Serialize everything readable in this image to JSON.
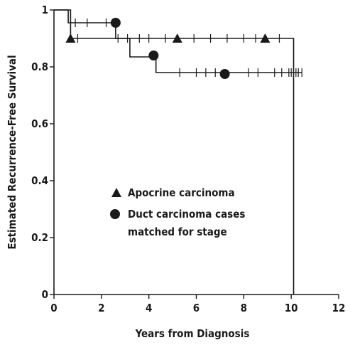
{
  "chart_data": {
    "type": "line",
    "title": "",
    "xlabel": "Years from Diagnosis",
    "ylabel": "Estimated Recurrence-Free Survival",
    "xlim": [
      0,
      12
    ],
    "ylim": [
      0,
      1
    ],
    "xticks": [
      "0",
      "2",
      "4",
      "6",
      "8",
      "10",
      "12"
    ],
    "yticks": [
      "0",
      "0.2",
      "0.4",
      "0.6",
      "0.8",
      "1"
    ],
    "grid": false,
    "legend_position": "center-left",
    "colors": {
      "ink": "#1a1a1a"
    },
    "series": [
      {
        "name": "Apocrine carcinoma",
        "marker": "triangle",
        "step_x": [
          0,
          0.7,
          10.1,
          10.1
        ],
        "step_y": [
          1.0,
          0.9,
          0.9,
          0.0
        ],
        "censor_x": [
          1.0,
          2.7,
          3.1,
          3.6,
          4.0,
          4.7,
          5.9,
          6.6,
          7.3,
          8.0,
          8.5,
          9.5
        ],
        "marker_points": [
          {
            "x": 0.7,
            "y": 0.9
          },
          {
            "x": 5.2,
            "y": 0.9
          },
          {
            "x": 8.9,
            "y": 0.9
          }
        ]
      },
      {
        "name": "Duct carcinoma cases matched for stage",
        "marker": "circle",
        "step_x": [
          0,
          0.6,
          2.6,
          3.2,
          4.3,
          10.45
        ],
        "step_y": [
          1.0,
          0.955,
          0.9,
          0.835,
          0.78,
          0.78
        ],
        "censor_x": [
          0.9,
          1.4,
          2.2,
          5.3,
          6.0,
          6.4,
          6.8,
          8.2,
          8.6,
          9.3,
          9.6,
          9.9,
          10.0,
          10.2,
          10.3,
          10.45
        ],
        "marker_points": [
          {
            "x": 2.6,
            "y": 0.955
          },
          {
            "x": 4.2,
            "y": 0.84
          },
          {
            "x": 7.2,
            "y": 0.775
          }
        ]
      }
    ]
  }
}
